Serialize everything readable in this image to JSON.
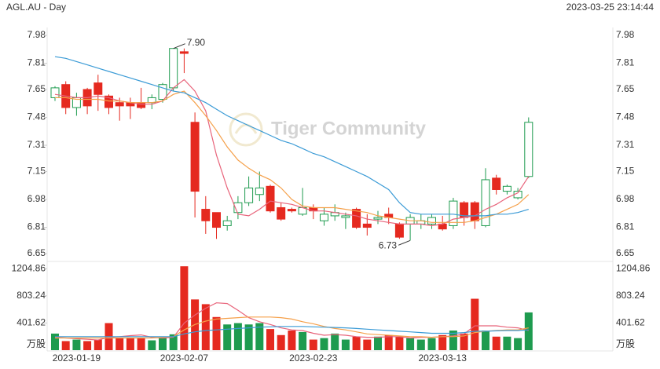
{
  "title": "AGL.AU - Day",
  "timestamp": "2023-03-25 23:14:44",
  "watermark": "Tiger Community",
  "chart_data": [
    {
      "type": "candlestick",
      "ylim": [
        6.65,
        7.98
      ],
      "yticks": [
        7.98,
        7.81,
        7.65,
        7.48,
        7.31,
        7.15,
        6.98,
        6.81,
        6.65
      ],
      "up_color": "#1e9b4f",
      "down_color": "#e5291f",
      "open": [
        7.6,
        7.68,
        7.54,
        7.65,
        7.69,
        7.61,
        7.57,
        7.57,
        7.57,
        7.57,
        7.59,
        7.66,
        7.88,
        7.45,
        6.92,
        6.9,
        6.82,
        6.9,
        6.96,
        7.01,
        7.06,
        6.93,
        6.92,
        6.89,
        6.93,
        6.85,
        6.88,
        6.87,
        6.92,
        6.83,
        6.86,
        6.89,
        6.83,
        6.83,
        6.83,
        6.83,
        6.83,
        6.82,
        6.96,
        6.96,
        6.82,
        7.11,
        7.03,
        6.99,
        7.12
      ],
      "high": [
        7.67,
        7.7,
        7.63,
        7.66,
        7.74,
        7.62,
        7.6,
        7.6,
        7.66,
        7.62,
        7.69,
        7.9,
        7.9,
        7.51,
        7.0,
        6.9,
        6.88,
        7.0,
        7.12,
        7.15,
        7.07,
        6.96,
        6.93,
        7.05,
        6.95,
        6.93,
        6.95,
        6.9,
        6.93,
        6.89,
        6.91,
        6.93,
        6.84,
        6.89,
        6.89,
        6.89,
        6.88,
        6.99,
        6.97,
        6.97,
        7.17,
        7.13,
        7.07,
        7.05,
        7.48
      ],
      "low": [
        7.58,
        7.5,
        7.49,
        7.5,
        7.52,
        7.5,
        7.46,
        7.47,
        7.53,
        7.53,
        7.57,
        7.64,
        7.75,
        6.87,
        6.77,
        6.74,
        6.79,
        6.86,
        6.94,
        6.97,
        6.9,
        6.85,
        6.9,
        6.88,
        6.86,
        6.82,
        6.85,
        6.8,
        6.8,
        6.76,
        6.83,
        6.83,
        6.74,
        6.73,
        6.8,
        6.8,
        6.79,
        6.8,
        6.82,
        6.8,
        6.81,
        7.01,
        7.01,
        6.98,
        7.11
      ],
      "close": [
        7.66,
        7.54,
        7.6,
        7.55,
        7.62,
        7.54,
        7.55,
        7.55,
        7.54,
        7.6,
        7.68,
        7.9,
        7.87,
        7.03,
        6.85,
        6.81,
        6.85,
        6.96,
        7.05,
        7.05,
        6.91,
        6.86,
        6.91,
        6.93,
        6.91,
        6.89,
        6.9,
        6.88,
        6.81,
        6.81,
        6.87,
        6.87,
        6.75,
        6.87,
        6.85,
        6.87,
        6.8,
        6.97,
        6.87,
        6.85,
        7.1,
        7.04,
        7.06,
        7.03,
        7.45
      ],
      "lines": [
        {
          "color": "#e8637a",
          "values": [
            7.62,
            7.61,
            7.6,
            7.6,
            7.61,
            7.6,
            7.58,
            7.57,
            7.56,
            7.56,
            7.58,
            7.66,
            7.71,
            7.64,
            7.52,
            7.25,
            7.05,
            6.89,
            6.88,
            6.92,
            6.97,
            6.96,
            6.95,
            6.93,
            6.91,
            6.91,
            6.9,
            6.89,
            6.88,
            6.86,
            6.85,
            6.84,
            6.83,
            6.83,
            6.83,
            6.82,
            6.83,
            6.86,
            6.87,
            6.88,
            6.92,
            6.95,
            6.99,
            7.02,
            7.12
          ]
        },
        {
          "color": "#f5a04a",
          "values": [
            7.6,
            7.6,
            7.59,
            7.59,
            7.59,
            7.58,
            7.58,
            7.57,
            7.57,
            7.57,
            7.58,
            7.62,
            7.64,
            7.57,
            7.49,
            7.4,
            7.3,
            7.22,
            7.17,
            7.13,
            7.1,
            7.05,
            6.98,
            6.94,
            6.93,
            6.93,
            6.93,
            6.92,
            6.91,
            6.9,
            6.88,
            6.87,
            6.86,
            6.85,
            6.85,
            6.84,
            6.84,
            6.84,
            6.84,
            6.85,
            6.87,
            6.89,
            6.92,
            6.95,
            7.01
          ]
        },
        {
          "color": "#3b9bd6",
          "values": [
            7.85,
            7.84,
            7.82,
            7.8,
            7.78,
            7.76,
            7.74,
            7.72,
            7.7,
            7.68,
            7.66,
            7.64,
            7.63,
            7.6,
            7.57,
            7.53,
            7.49,
            7.46,
            7.43,
            7.4,
            7.37,
            7.34,
            7.32,
            7.29,
            7.26,
            7.24,
            7.21,
            7.18,
            7.15,
            7.12,
            7.08,
            7.04,
            6.96,
            6.9,
            6.89,
            6.89,
            6.89,
            6.89,
            6.88,
            6.88,
            6.88,
            6.89,
            6.89,
            6.9,
            6.92
          ]
        }
      ],
      "annotations": [
        {
          "value": 7.9,
          "label": "7.90"
        },
        {
          "value": 6.73,
          "label": "6.73"
        }
      ]
    },
    {
      "type": "bar",
      "categories": [
        null,
        null,
        "2023-01-19",
        null,
        null,
        null,
        null,
        null,
        null,
        null,
        null,
        null,
        "2023-02-07",
        null,
        null,
        null,
        null,
        null,
        null,
        null,
        null,
        null,
        null,
        null,
        "2023-02-23",
        null,
        null,
        null,
        null,
        null,
        null,
        null,
        null,
        null,
        null,
        null,
        "2023-03-13",
        null,
        null,
        null,
        null,
        null,
        null,
        null,
        null
      ],
      "values": [
        245,
        134,
        156,
        134,
        156,
        400,
        178,
        178,
        178,
        145,
        178,
        234,
        1240,
        750,
        680,
        490,
        380,
        400,
        380,
        400,
        312,
        223,
        290,
        268,
        156,
        178,
        245,
        156,
        200,
        156,
        200,
        223,
        200,
        178,
        156,
        178,
        223,
        290,
        245,
        760,
        290,
        200,
        200,
        178,
        558
      ],
      "ylim": [
        0,
        1300
      ],
      "yticks": [
        1204.86,
        803.24,
        401.62
      ],
      "unit": "万股",
      "lines": [
        {
          "color": "#e8637a",
          "values": [
            190,
            180,
            170,
            160,
            150,
            190,
            200,
            215,
            225,
            190,
            180,
            190,
            400,
            520,
            620,
            700,
            690,
            590,
            480,
            420,
            380,
            330,
            300,
            290,
            250,
            220,
            230,
            220,
            200,
            190,
            190,
            200,
            200,
            180,
            190,
            190,
            200,
            210,
            240,
            360,
            360,
            360,
            340,
            330,
            290
          ]
        },
        {
          "color": "#f5a04a",
          "values": [
            180,
            180,
            180,
            180,
            180,
            180,
            180,
            180,
            180,
            180,
            190,
            200,
            300,
            380,
            430,
            460,
            470,
            480,
            490,
            490,
            490,
            480,
            460,
            420,
            390,
            350,
            320,
            300,
            270,
            240,
            230,
            220,
            210,
            200,
            200,
            190,
            200,
            200,
            210,
            260,
            280,
            290,
            300,
            300,
            330
          ]
        },
        {
          "color": "#3b9bd6",
          "values": [
            200,
            200,
            200,
            200,
            200,
            200,
            200,
            200,
            200,
            200,
            200,
            200,
            240,
            270,
            290,
            300,
            310,
            320,
            330,
            340,
            345,
            350,
            350,
            350,
            345,
            340,
            335,
            330,
            320,
            310,
            300,
            290,
            280,
            270,
            260,
            250,
            250,
            250,
            260,
            280,
            280,
            285,
            290,
            290,
            300
          ]
        }
      ]
    }
  ]
}
